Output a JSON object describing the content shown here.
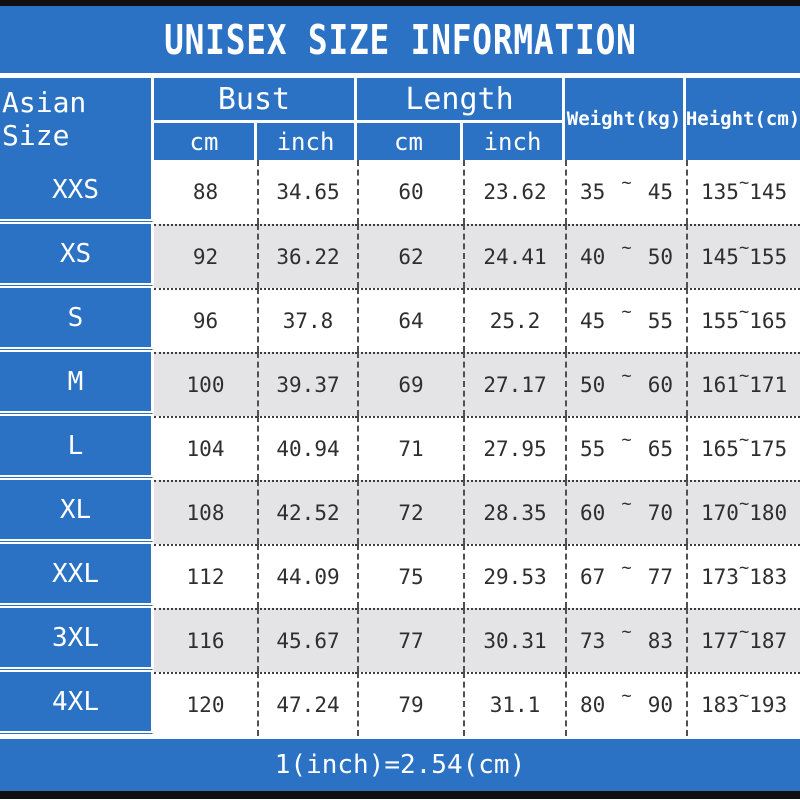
{
  "title": "UNISEX SIZE INFORMATION",
  "footer_note": "1(inch)=2.54(cm)",
  "symbols": {
    "tilde": "~"
  },
  "colors": {
    "accent_blue": "#2b72c5",
    "alt_row_gray": "#e4e3e6",
    "frame_black": "#101010",
    "text_dark": "#2e2e2e"
  },
  "table": {
    "size_header": "Asian Size",
    "groups": [
      {
        "label": "Bust",
        "sub": [
          "cm",
          "inch"
        ]
      },
      {
        "label": "Length",
        "sub": [
          "cm",
          "inch"
        ]
      }
    ],
    "weight_header": "Weight(kg)",
    "height_header": "Height(cm)",
    "rows": [
      {
        "size": "XXS",
        "bust_cm": "88",
        "bust_inch": "34.65",
        "length_cm": "60",
        "length_inch": "23.62",
        "weight_min": "35",
        "weight_max": "45",
        "height_min": "135",
        "height_max": "145"
      },
      {
        "size": "XS",
        "bust_cm": "92",
        "bust_inch": "36.22",
        "length_cm": "62",
        "length_inch": "24.41",
        "weight_min": "40",
        "weight_max": "50",
        "height_min": "145",
        "height_max": "155"
      },
      {
        "size": "S",
        "bust_cm": "96",
        "bust_inch": "37.8",
        "length_cm": "64",
        "length_inch": "25.2",
        "weight_min": "45",
        "weight_max": "55",
        "height_min": "155",
        "height_max": "165"
      },
      {
        "size": "M",
        "bust_cm": "100",
        "bust_inch": "39.37",
        "length_cm": "69",
        "length_inch": "27.17",
        "weight_min": "50",
        "weight_max": "60",
        "height_min": "161",
        "height_max": "171"
      },
      {
        "size": "L",
        "bust_cm": "104",
        "bust_inch": "40.94",
        "length_cm": "71",
        "length_inch": "27.95",
        "weight_min": "55",
        "weight_max": "65",
        "height_min": "165",
        "height_max": "175"
      },
      {
        "size": "XL",
        "bust_cm": "108",
        "bust_inch": "42.52",
        "length_cm": "72",
        "length_inch": "28.35",
        "weight_min": "60",
        "weight_max": "70",
        "height_min": "170",
        "height_max": "180"
      },
      {
        "size": "XXL",
        "bust_cm": "112",
        "bust_inch": "44.09",
        "length_cm": "75",
        "length_inch": "29.53",
        "weight_min": "67",
        "weight_max": "77",
        "height_min": "173",
        "height_max": "183"
      },
      {
        "size": "3XL",
        "bust_cm": "116",
        "bust_inch": "45.67",
        "length_cm": "77",
        "length_inch": "30.31",
        "weight_min": "73",
        "weight_max": "83",
        "height_min": "177",
        "height_max": "187"
      },
      {
        "size": "4XL",
        "bust_cm": "120",
        "bust_inch": "47.24",
        "length_cm": "79",
        "length_inch": "31.1",
        "weight_min": "80",
        "weight_max": "90",
        "height_min": "183",
        "height_max": "193"
      }
    ]
  }
}
